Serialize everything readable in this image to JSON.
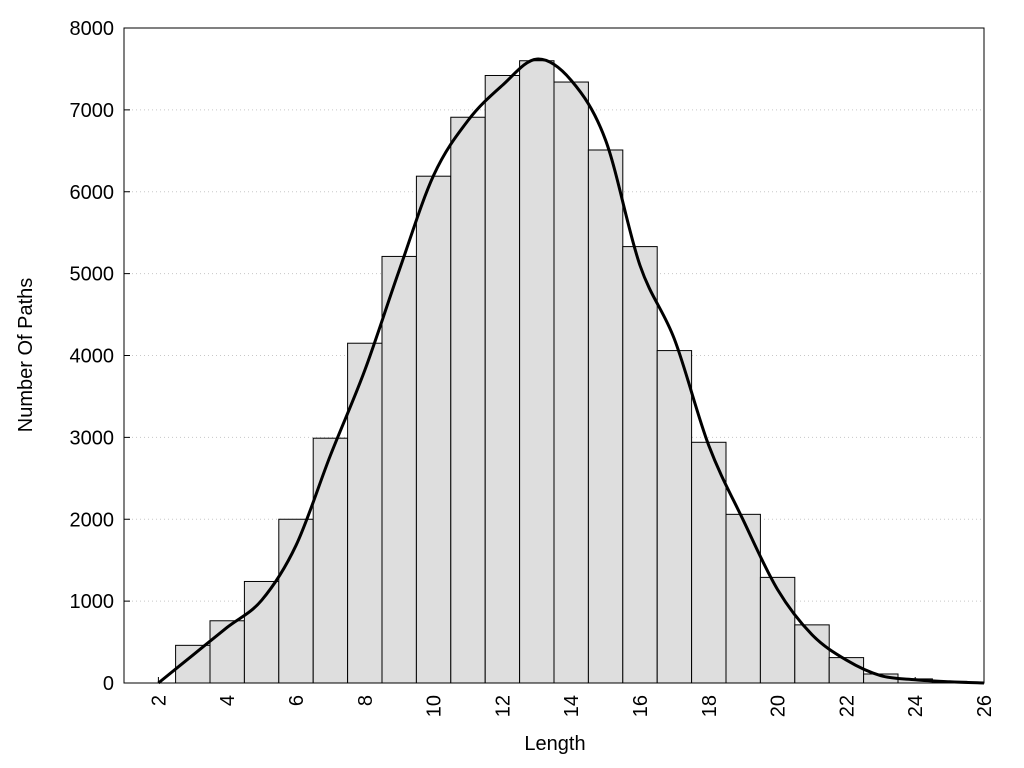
{
  "chart_data": {
    "type": "histogram",
    "x_label": "Length",
    "y_label": "Number Of Paths",
    "bins": [
      2.5,
      3.5,
      4.5,
      5.5,
      6.5,
      7.5,
      8.5,
      9.5,
      10.5,
      11.5,
      12.5,
      13.5,
      14.5,
      15.5,
      16.5,
      17.5,
      18.5,
      19.5,
      20.5,
      21.5,
      22.5,
      23.5,
      24.5,
      25.5
    ],
    "values": [
      460,
      760,
      1240,
      2000,
      2990,
      4150,
      5210,
      6190,
      6910,
      7420,
      7600,
      7340,
      6510,
      5330,
      4060,
      2940,
      2060,
      1290,
      710,
      310,
      110,
      50,
      20
    ],
    "color": "#dedede",
    "curve": {
      "color": "#000000",
      "x": [
        2,
        3,
        4,
        5,
        6,
        7,
        8,
        9,
        10,
        11,
        12,
        13,
        14,
        15,
        16,
        17,
        18,
        19,
        20,
        21,
        22,
        23,
        24,
        25,
        26
      ],
      "values": [
        0,
        340,
        680,
        1010,
        1680,
        2780,
        3820,
        5040,
        6200,
        6870,
        7300,
        7620,
        7360,
        6630,
        5100,
        4200,
        2900,
        1990,
        1140,
        590,
        280,
        90,
        40,
        15,
        0
      ]
    },
    "xlim": [
      1,
      26
    ],
    "ylim": [
      0,
      8000
    ],
    "xticks": [
      2,
      4,
      6,
      8,
      10,
      12,
      14,
      16,
      18,
      20,
      22,
      24,
      26
    ],
    "yticks": [
      0,
      1000,
      2000,
      3000,
      4000,
      5000,
      6000,
      7000,
      8000
    ],
    "grid": true
  }
}
